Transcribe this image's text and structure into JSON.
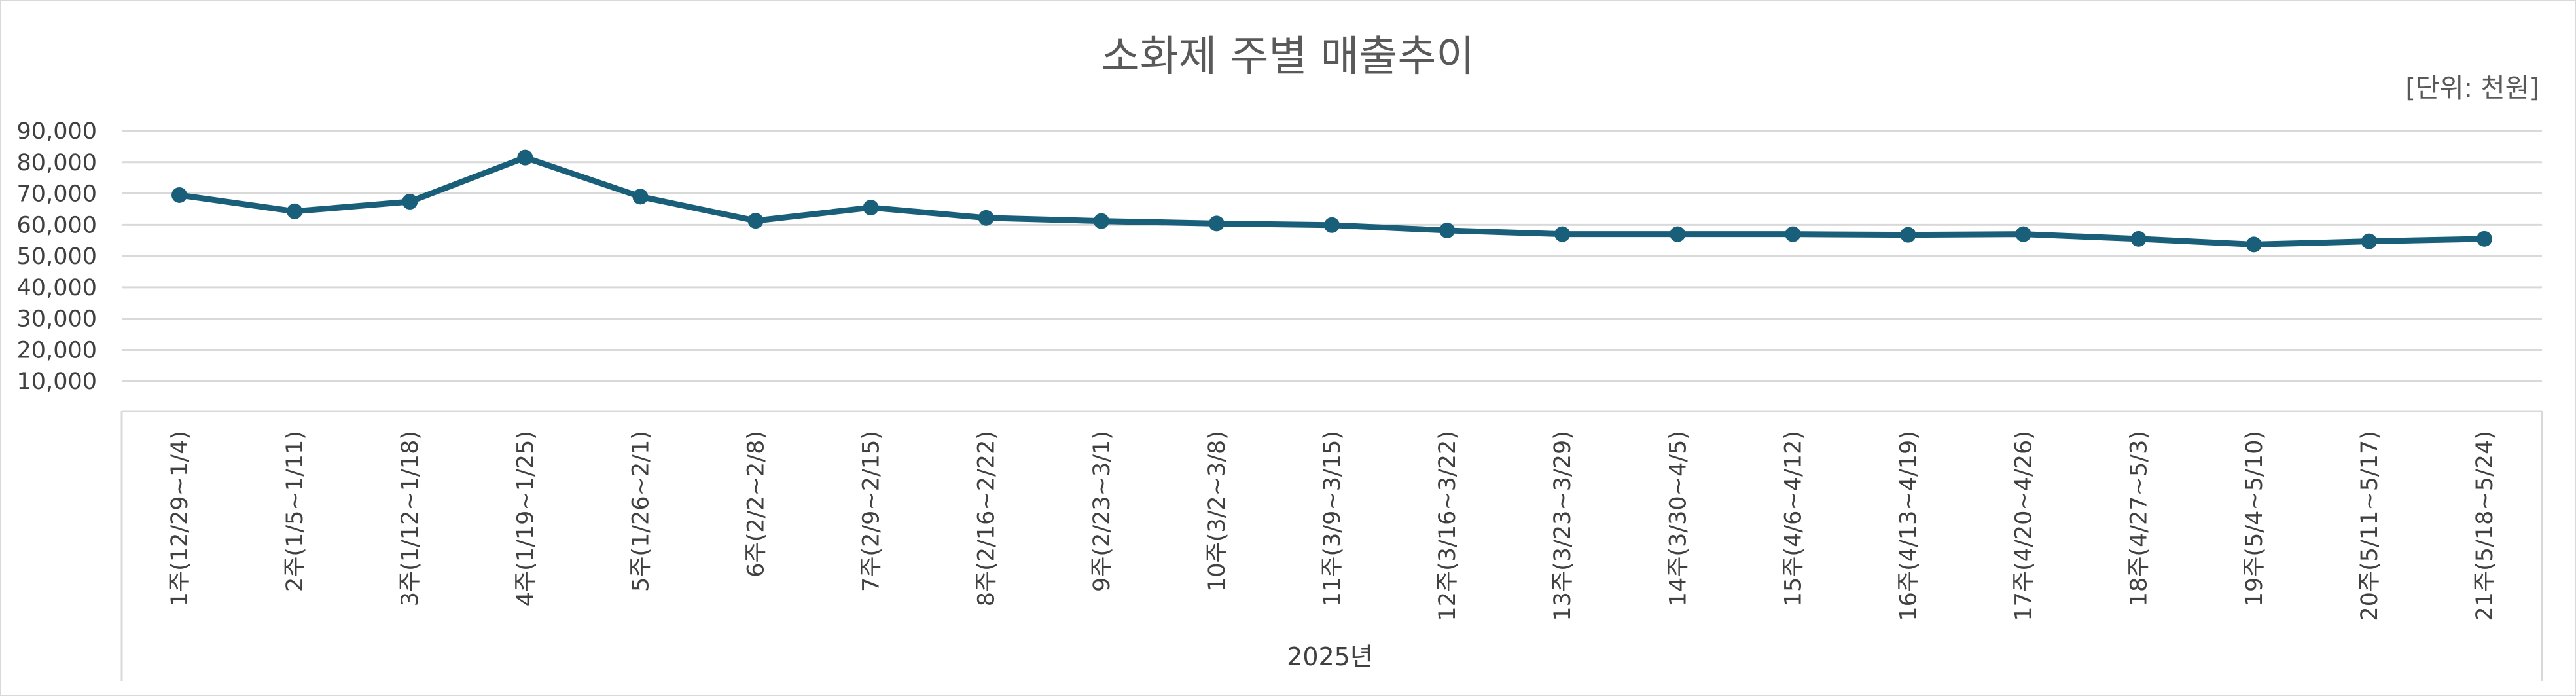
{
  "chart_data": {
    "type": "line",
    "title": "소화제 주별 매출추이",
    "unit_label": "[단위: 천원]",
    "xlabel": "2025년",
    "ylabel": "",
    "ylim": [
      0,
      90000
    ],
    "ytick_values": [
      10000,
      20000,
      30000,
      40000,
      50000,
      60000,
      70000,
      80000,
      90000
    ],
    "ytick_labels": [
      "10,000",
      "20,000",
      "30,000",
      "40,000",
      "50,000",
      "60,000",
      "70,000",
      "80,000",
      "90,000"
    ],
    "grid": true,
    "legend": "none",
    "line_color": "#1a5f7a",
    "categories": [
      "1주(12/29~1/4)",
      "2주(1/5~1/11)",
      "3주(1/12~1/18)",
      "4주(1/19~1/25)",
      "5주(1/26~2/1)",
      "6주(2/2~2/8)",
      "7주(2/9~2/15)",
      "8주(2/16~2/22)",
      "9주(2/23~3/1)",
      "10주(3/2~3/8)",
      "11주(3/9~3/15)",
      "12주(3/16~3/22)",
      "13주(3/23~3/29)",
      "14주(3/30~4/5)",
      "15주(4/6~4/12)",
      "16주(4/13~4/19)",
      "17주(4/20~4/26)",
      "18주(4/27~5/3)",
      "19주(5/4~5/10)",
      "20주(5/11~5/17)",
      "21주(5/18~5/24)"
    ],
    "series": [
      {
        "values": [
          69500,
          64300,
          67400,
          81500,
          69000,
          61300,
          65500,
          62200,
          61200,
          60400,
          59900,
          58200,
          57000,
          57000,
          57000,
          56800,
          57000,
          55500,
          53700,
          54700,
          55500
        ]
      }
    ]
  }
}
